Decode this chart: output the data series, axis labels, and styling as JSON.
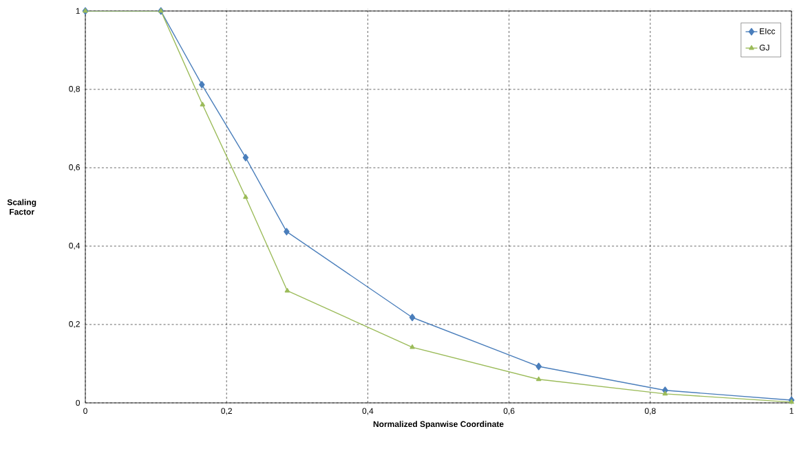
{
  "chart_data": {
    "type": "line",
    "xlabel": "Normalized Spanwise Coordinate",
    "ylabel": "Scaling Factor",
    "series": [
      {
        "name": "EIcc",
        "color": "#4a7ebb",
        "marker": "diamond",
        "x": [
          0,
          0.107,
          0.165,
          0.227,
          0.285,
          0.463,
          0.642,
          0.821,
          1
        ],
        "values": [
          1,
          1,
          0.812,
          0.626,
          0.437,
          0.218,
          0.093,
          0.032,
          0.007
        ]
      },
      {
        "name": "GJ",
        "color": "#9bbb59",
        "marker": "triangle",
        "x": [
          0,
          0.107,
          0.166,
          0.227,
          0.286,
          0.463,
          0.642,
          0.821,
          1
        ],
        "values": [
          1,
          1,
          0.761,
          0.525,
          0.286,
          0.142,
          0.06,
          0.023,
          0.002
        ]
      }
    ],
    "xlim": [
      0,
      1
    ],
    "ylim": [
      0,
      1
    ],
    "xticks": [
      0,
      {
        "value": 0.2,
        "label": "0,2"
      },
      {
        "value": 0.4,
        "label": "0,4"
      },
      {
        "value": 0.6,
        "label": "0,6"
      },
      {
        "value": 0.8,
        "label": "0,8"
      },
      1
    ],
    "yticks": [
      0,
      {
        "value": 0.2,
        "label": "0,2"
      },
      {
        "value": 0.4,
        "label": "0,4"
      },
      {
        "value": 0.6,
        "label": "0,6"
      },
      {
        "value": 0.8,
        "label": "0,8"
      },
      1
    ],
    "grid": true,
    "legend": "top right",
    "line_style": "solid"
  }
}
